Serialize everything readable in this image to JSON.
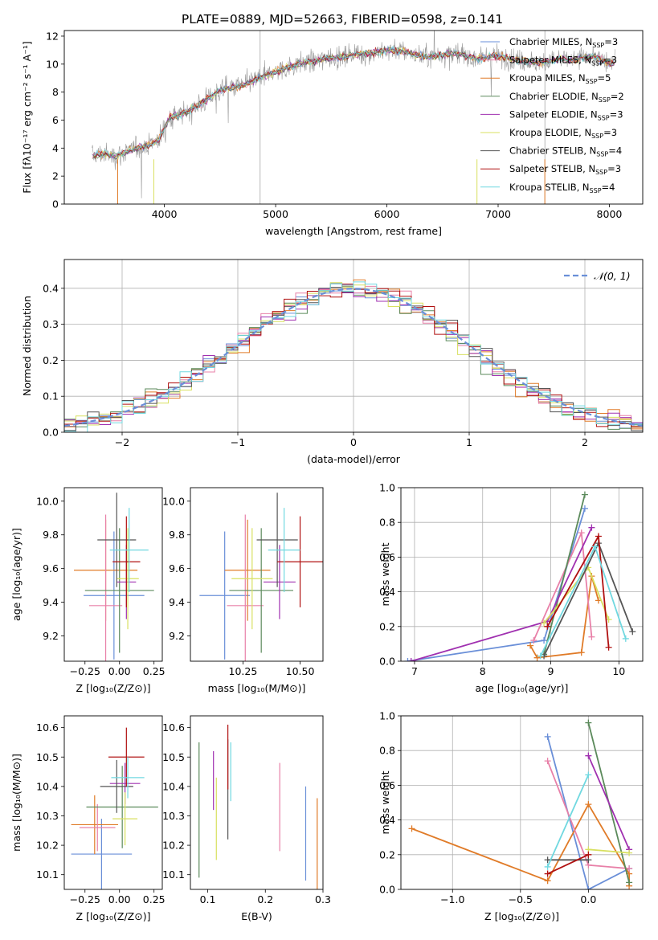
{
  "figure_title": "PLATE=0889, MJD=52663, FIBERID=0598, z=0.141",
  "series_colors": [
    "#6a8fd8",
    "#e07b28",
    "#5b8a5b",
    "#a030b0",
    "#d8e060",
    "#555555",
    "#b01010",
    "#70d8e0",
    "#e880a8",
    "#999999"
  ],
  "chart_data": [
    {
      "id": "spectrum",
      "type": "line",
      "xlabel": "wavelength [Angstrom, rest frame]",
      "ylabel": "Flux [fλ10⁻¹⁷ erg cm⁻² s⁻¹ A⁻¹]",
      "xlim": [
        3100,
        8300
      ],
      "ylim": [
        0,
        12.4
      ],
      "xticks": [
        "4000",
        "5000",
        "6000",
        "7000",
        "8000"
      ],
      "xtick_values": [
        4000,
        5000,
        6000,
        7000,
        8000
      ],
      "yticks": [
        "0",
        "2",
        "4",
        "6",
        "8",
        "10",
        "12"
      ],
      "ytick_values": [
        0,
        2,
        4,
        6,
        8,
        10,
        12
      ],
      "grid": false,
      "legend_position": "right",
      "data_series": {
        "name": "",
        "color": "#999999",
        "x": [
          3350,
          3450,
          3550,
          3650,
          3750,
          3850,
          3950,
          4050,
          4150,
          4250,
          4350,
          4450,
          4550,
          4650,
          4750,
          4850,
          4950,
          5050,
          5150,
          5250,
          5350,
          5450,
          5550,
          5650,
          5750,
          5850,
          5950,
          6050,
          6150,
          6250,
          6350,
          6450,
          6550,
          6650,
          6750,
          6850,
          6950,
          7050,
          7150,
          7250,
          7350,
          7450,
          7550,
          7650,
          7750,
          7850,
          7950,
          8050
        ],
        "y": [
          3.5,
          3.6,
          3.4,
          3.7,
          4.0,
          4.2,
          4.6,
          6.2,
          6.4,
          6.8,
          7.3,
          7.9,
          8.2,
          8.4,
          8.6,
          9.0,
          9.3,
          9.6,
          9.9,
          10.1,
          10.2,
          10.4,
          10.5,
          10.6,
          10.7,
          10.8,
          10.9,
          11.0,
          10.9,
          10.7,
          10.5,
          10.6,
          10.8,
          10.7,
          10.5,
          10.4,
          10.6,
          10.5,
          10.3,
          10.2,
          10.1,
          10.2,
          10.4,
          10.3,
          10.4,
          10.6,
          10.2,
          10.0
        ]
      },
      "models": [
        {
          "name": "Chabrier MILES, N",
          "sub": "SSP",
          "suffix": "=3",
          "color": "#6a8fd8"
        },
        {
          "name": "Salpeter MILES, N",
          "sub": "SSP",
          "suffix": "=3",
          "color": "#e880a8"
        },
        {
          "name": "Kroupa MILES, N",
          "sub": "SSP",
          "suffix": "=5",
          "color": "#e07b28"
        },
        {
          "name": "Chabrier ELODIE, N",
          "sub": "SSP",
          "suffix": "=2",
          "color": "#5b8a5b"
        },
        {
          "name": "Salpeter ELODIE, N",
          "sub": "SSP",
          "suffix": "=3",
          "color": "#a030b0"
        },
        {
          "name": "Kroupa ELODIE, N",
          "sub": "SSP",
          "suffix": "=3",
          "color": "#d8e060"
        },
        {
          "name": "Chabrier STELIB, N",
          "sub": "SSP",
          "suffix": "=4",
          "color": "#555555"
        },
        {
          "name": "Salpeter STELIB, N",
          "sub": "SSP",
          "suffix": "=3",
          "color": "#b01010"
        },
        {
          "name": "Kroupa STELIB, N",
          "sub": "SSP",
          "suffix": "=4",
          "color": "#70d8e0"
        }
      ]
    },
    {
      "id": "residuals",
      "type": "histogram",
      "xlabel": "(data-model)/error",
      "ylabel": "Normed distribution",
      "xlim": [
        -2.5,
        2.5
      ],
      "ylim": [
        0,
        0.48
      ],
      "xticks": [
        "−2",
        "−1",
        "0",
        "1",
        "2"
      ],
      "xtick_values": [
        -2,
        -1,
        0,
        1,
        2
      ],
      "yticks": [
        "0.0",
        "0.1",
        "0.2",
        "0.3",
        "0.4"
      ],
      "ytick_values": [
        0,
        0.1,
        0.2,
        0.3,
        0.4
      ],
      "grid": true,
      "legend_label": "𝒩(0, 1)",
      "legend_position": "top-right",
      "bin_width": 0.1,
      "bin_start": -2.5,
      "reference_curve": {
        "type": "normal",
        "mean": 0,
        "sd": 1,
        "style": "dashed",
        "color": "#6a8fd8"
      }
    },
    {
      "id": "z_age",
      "type": "errorbar",
      "xlabel": "Z [log₁₀(Z/Z⊙)]",
      "ylabel": "age  [log₁₀(age/yr)]",
      "xlim": [
        -0.4,
        0.31
      ],
      "ylim": [
        9.05,
        10.08
      ],
      "xticks": [
        "−0.25",
        "0.00",
        "0.25"
      ],
      "xtick_values": [
        -0.25,
        0,
        0.25
      ],
      "yticks": [
        "9.2",
        "9.4",
        "9.6",
        "9.8",
        "10.0"
      ],
      "ytick_values": [
        9.2,
        9.4,
        9.6,
        9.8,
        10.0
      ],
      "points": [
        {
          "x": -0.04,
          "xerr": 0.22,
          "y": 9.44,
          "yerr": 0.38,
          "color": "#6a8fd8"
        },
        {
          "x": -0.1,
          "xerr": 0.23,
          "y": 9.59,
          "yerr": 0.3,
          "color": "#e07b28"
        },
        {
          "x": -0.1,
          "xerr": 0.12,
          "y": 9.38,
          "yerr": 0.54,
          "color": "#e880a8"
        },
        {
          "x": 0.0,
          "xerr": 0.25,
          "y": 9.47,
          "yerr": 0.37,
          "color": "#5b8a5b"
        },
        {
          "x": 0.05,
          "xerr": 0.07,
          "y": 9.52,
          "yerr": 0.22,
          "color": "#a030b0"
        },
        {
          "x": 0.06,
          "xerr": 0.08,
          "y": 9.54,
          "yerr": 0.3,
          "color": "#d8e060"
        },
        {
          "x": -0.02,
          "xerr": 0.14,
          "y": 9.77,
          "yerr": 0.28,
          "color": "#555555"
        },
        {
          "x": 0.05,
          "xerr": 0.1,
          "y": 9.64,
          "yerr": 0.27,
          "color": "#b01010"
        },
        {
          "x": 0.07,
          "xerr": 0.14,
          "y": 9.71,
          "yerr": 0.25,
          "color": "#70d8e0"
        }
      ]
    },
    {
      "id": "mass_age",
      "type": "errorbar",
      "xlabel": "mass [log₁₀(M/M⊙)]",
      "ylabel": "",
      "xlim": [
        10.02,
        10.6
      ],
      "ylim": [
        9.05,
        10.08
      ],
      "xticks": [
        "10.25",
        "10.50"
      ],
      "xtick_values": [
        10.25,
        10.5
      ],
      "yticks": [
        "9.2",
        "9.4",
        "9.6",
        "9.8",
        "10.0"
      ],
      "ytick_values": [
        9.2,
        9.4,
        9.6,
        9.8,
        10.0
      ],
      "points": [
        {
          "x": 10.17,
          "xerr": 0.11,
          "y": 9.44,
          "yerr": 0.38,
          "color": "#6a8fd8"
        },
        {
          "x": 10.27,
          "xerr": 0.1,
          "y": 9.59,
          "yerr": 0.3,
          "color": "#e07b28"
        },
        {
          "x": 10.26,
          "xerr": 0.08,
          "y": 9.38,
          "yerr": 0.54,
          "color": "#e880a8"
        },
        {
          "x": 10.33,
          "xerr": 0.14,
          "y": 9.47,
          "yerr": 0.37,
          "color": "#5b8a5b"
        },
        {
          "x": 10.41,
          "xerr": 0.07,
          "y": 9.52,
          "yerr": 0.22,
          "color": "#a030b0"
        },
        {
          "x": 10.29,
          "xerr": 0.09,
          "y": 9.54,
          "yerr": 0.3,
          "color": "#d8e060"
        },
        {
          "x": 10.4,
          "xerr": 0.09,
          "y": 9.77,
          "yerr": 0.28,
          "color": "#555555"
        },
        {
          "x": 10.5,
          "xerr": 0.1,
          "y": 9.64,
          "yerr": 0.27,
          "color": "#b01010"
        },
        {
          "x": 10.43,
          "xerr": 0.07,
          "y": 9.71,
          "yerr": 0.25,
          "color": "#70d8e0"
        }
      ]
    },
    {
      "id": "age_weight",
      "type": "line",
      "xlabel": "age  [log₁₀(age/yr)]",
      "ylabel": "mass weight",
      "xlim": [
        6.8,
        10.35
      ],
      "ylim": [
        0,
        1.0
      ],
      "xticks": [
        "7",
        "8",
        "9",
        "10"
      ],
      "xtick_values": [
        7,
        8,
        9,
        10
      ],
      "yticks": [
        "0.0",
        "0.2",
        "0.4",
        "0.6",
        "0.8",
        "1.0"
      ],
      "ytick_values": [
        0,
        0.2,
        0.4,
        0.6,
        0.8,
        1.0
      ],
      "grid": true,
      "series": [
        {
          "color": "#6a8fd8",
          "x": [
            6.9,
            8.9,
            9.5
          ],
          "y": [
            0.0,
            0.12,
            0.88
          ]
        },
        {
          "color": "#e07b28",
          "x": [
            8.7,
            8.8,
            9.45,
            9.6,
            9.7
          ],
          "y": [
            0.09,
            0.02,
            0.05,
            0.49,
            0.35
          ]
        },
        {
          "color": "#e880a8",
          "x": [
            8.75,
            9.45,
            9.6
          ],
          "y": [
            0.12,
            0.74,
            0.14
          ]
        },
        {
          "color": "#5b8a5b",
          "x": [
            8.9,
            9.5
          ],
          "y": [
            0.04,
            0.96
          ]
        },
        {
          "color": "#a030b0",
          "x": [
            6.95,
            8.95,
            9.6
          ],
          "y": [
            0.0,
            0.23,
            0.77
          ]
        },
        {
          "color": "#d8e060",
          "x": [
            8.9,
            9.55,
            9.85
          ],
          "y": [
            0.22,
            0.54,
            0.24
          ]
        },
        {
          "color": "#555555",
          "x": [
            8.9,
            9.7,
            10.2
          ],
          "y": [
            0.03,
            0.68,
            0.17
          ]
        },
        {
          "color": "#b01010",
          "x": [
            8.95,
            9.7,
            9.85
          ],
          "y": [
            0.2,
            0.72,
            0.08
          ]
        },
        {
          "color": "#70d8e0",
          "x": [
            8.85,
            9.65,
            10.1
          ],
          "y": [
            0.03,
            0.66,
            0.13
          ]
        }
      ]
    },
    {
      "id": "z_mass",
      "type": "errorbar",
      "xlabel": "Z [log₁₀(Z/Z⊙)]",
      "ylabel": "mass [log₁₀(M/M⊙)]",
      "xlim": [
        -0.4,
        0.31
      ],
      "ylim": [
        10.05,
        10.64
      ],
      "xticks": [
        "−0.25",
        "0.00",
        "0.25"
      ],
      "xtick_values": [
        -0.25,
        0,
        0.25
      ],
      "yticks": [
        "10.1",
        "10.2",
        "10.3",
        "10.4",
        "10.5",
        "10.6"
      ],
      "ytick_values": [
        10.1,
        10.2,
        10.3,
        10.4,
        10.5,
        10.6
      ],
      "points": [
        {
          "x": -0.13,
          "xerr": 0.22,
          "y": 10.17,
          "yerr": 0.12,
          "color": "#6a8fd8"
        },
        {
          "x": -0.18,
          "xerr": 0.17,
          "y": 10.27,
          "yerr": 0.1,
          "color": "#e07b28"
        },
        {
          "x": -0.16,
          "xerr": 0.13,
          "y": 10.26,
          "yerr": 0.08,
          "color": "#e880a8"
        },
        {
          "x": 0.02,
          "xerr": 0.26,
          "y": 10.33,
          "yerr": 0.14,
          "color": "#5b8a5b"
        },
        {
          "x": 0.04,
          "xerr": 0.11,
          "y": 10.41,
          "yerr": 0.07,
          "color": "#a030b0"
        },
        {
          "x": 0.04,
          "xerr": 0.09,
          "y": 10.29,
          "yerr": 0.09,
          "color": "#d8e060"
        },
        {
          "x": -0.02,
          "xerr": 0.12,
          "y": 10.4,
          "yerr": 0.09,
          "color": "#555555"
        },
        {
          "x": 0.05,
          "xerr": 0.13,
          "y": 10.5,
          "yerr": 0.1,
          "color": "#b01010"
        },
        {
          "x": 0.06,
          "xerr": 0.12,
          "y": 10.43,
          "yerr": 0.07,
          "color": "#70d8e0"
        }
      ]
    },
    {
      "id": "ebv_mass",
      "type": "errorbar",
      "xlabel": "E(B-V)",
      "ylabel": "",
      "xlim": [
        0.07,
        0.3
      ],
      "ylim": [
        10.05,
        10.64
      ],
      "xticks": [
        "0.1",
        "0.2",
        "0.3"
      ],
      "xtick_values": [
        0.1,
        0.2,
        0.3
      ],
      "yticks": [
        "10.1",
        "10.2",
        "10.3",
        "10.4",
        "10.5",
        "10.6"
      ],
      "ytick_values": [
        10.1,
        10.2,
        10.3,
        10.4,
        10.5,
        10.6
      ],
      "points": [
        {
          "x": 0.27,
          "xerr": 0,
          "y": 10.24,
          "yerr": 0.16,
          "color": "#6a8fd8"
        },
        {
          "x": 0.29,
          "xerr": 0,
          "y": 10.2,
          "yerr": 0.16,
          "color": "#e07b28"
        },
        {
          "x": 0.225,
          "xerr": 0,
          "y": 10.33,
          "yerr": 0.15,
          "color": "#e880a8"
        },
        {
          "x": 0.085,
          "xerr": 0,
          "y": 10.32,
          "yerr": 0.23,
          "color": "#5b8a5b"
        },
        {
          "x": 0.11,
          "xerr": 0,
          "y": 10.42,
          "yerr": 0.1,
          "color": "#a030b0"
        },
        {
          "x": 0.115,
          "xerr": 0,
          "y": 10.29,
          "yerr": 0.14,
          "color": "#d8e060"
        },
        {
          "x": 0.135,
          "xerr": 0,
          "y": 10.39,
          "yerr": 0.17,
          "color": "#555555"
        },
        {
          "x": 0.135,
          "xerr": 0,
          "y": 10.5,
          "yerr": 0.11,
          "color": "#b01010"
        },
        {
          "x": 0.14,
          "xerr": 0,
          "y": 10.45,
          "yerr": 0.1,
          "color": "#70d8e0"
        }
      ]
    },
    {
      "id": "z_weight",
      "type": "line",
      "xlabel": "Z [log₁₀(Z/Z⊙)]",
      "ylabel": "mass weight",
      "xlim": [
        -1.38,
        0.4
      ],
      "ylim": [
        0,
        1.0
      ],
      "xticks": [
        "−1.0",
        "−0.5",
        "0.0"
      ],
      "xtick_values": [
        -1.0,
        -0.5,
        0.0
      ],
      "yticks": [
        "0.0",
        "0.2",
        "0.4",
        "0.6",
        "0.8",
        "1.0"
      ],
      "ytick_values": [
        0,
        0.2,
        0.4,
        0.6,
        0.8,
        1.0
      ],
      "grid": true,
      "series": [
        {
          "color": "#6a8fd8",
          "x": [
            -0.3,
            0.0,
            0.3
          ],
          "y": [
            0.88,
            0.0,
            0.12
          ]
        },
        {
          "color": "#e07b28",
          "x": [
            -1.3,
            -0.3,
            0.0,
            0.3,
            0.3
          ],
          "y": [
            0.35,
            0.05,
            0.49,
            0.09,
            0.02
          ]
        },
        {
          "color": "#e880a8",
          "x": [
            -0.3,
            0.0,
            0.3
          ],
          "y": [
            0.74,
            0.14,
            0.12
          ]
        },
        {
          "color": "#5b8a5b",
          "x": [
            0.0,
            0.3
          ],
          "y": [
            0.96,
            0.04
          ]
        },
        {
          "color": "#a030b0",
          "x": [
            0.0,
            0.3
          ],
          "y": [
            0.77,
            0.23
          ]
        },
        {
          "color": "#d8e060",
          "x": [
            0.0,
            0.3
          ],
          "y": [
            0.23,
            0.21
          ]
        },
        {
          "color": "#555555",
          "x": [
            -0.3,
            0.0
          ],
          "y": [
            0.17,
            0.17
          ]
        },
        {
          "color": "#b01010",
          "x": [
            -0.3,
            0.0
          ],
          "y": [
            0.09,
            0.2
          ]
        },
        {
          "color": "#70d8e0",
          "x": [
            -0.3,
            0.0
          ],
          "y": [
            0.13,
            0.66
          ]
        }
      ]
    }
  ]
}
